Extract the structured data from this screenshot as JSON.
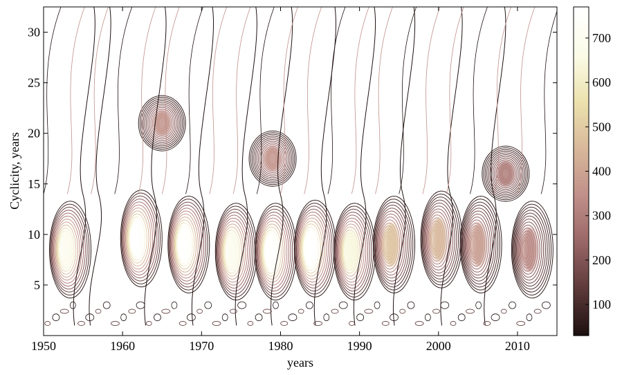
{
  "chart_data": {
    "type": "heatmap",
    "title": "",
    "xlabel": "years",
    "ylabel": "Cyclicity, years",
    "xlim": [
      1950,
      2015
    ],
    "ylim": [
      0,
      32.5
    ],
    "x_ticks": [
      1950,
      1960,
      1970,
      1980,
      1990,
      2000,
      2010
    ],
    "y_ticks": [
      5,
      10,
      15,
      20,
      25,
      30
    ],
    "colorbar": {
      "range": [
        30,
        770
      ],
      "ticks": [
        100,
        200,
        300,
        400,
        500,
        600,
        700
      ],
      "colors": [
        "#1e1010",
        "#5e3a3a",
        "#9a6767",
        "#c0908a",
        "#d8b89a",
        "#ece2ae",
        "#fbfbe8",
        "#ffffff"
      ]
    },
    "grid": false,
    "legend": "none",
    "description_of_peaks": [
      {
        "x": 1952.5,
        "y": 8.5,
        "value": 700
      },
      {
        "x": 1961.5,
        "y": 9.6,
        "value": 770
      },
      {
        "x": 1967.5,
        "y": 9.0,
        "value": 760
      },
      {
        "x": 1973.5,
        "y": 8.3,
        "value": 700
      },
      {
        "x": 1978.5,
        "y": 8.3,
        "value": 760
      },
      {
        "x": 1983.5,
        "y": 8.6,
        "value": 770
      },
      {
        "x": 1988.5,
        "y": 8.3,
        "value": 650
      },
      {
        "x": 1993.5,
        "y": 9.0,
        "value": 480
      },
      {
        "x": 1999.5,
        "y": 9.5,
        "value": 450
      },
      {
        "x": 2004.5,
        "y": 9.0,
        "value": 380
      },
      {
        "x": 2011.0,
        "y": 8.5,
        "value": 330
      },
      {
        "x": 1965.0,
        "y": 21.0,
        "value": 360
      },
      {
        "x": 1979.0,
        "y": 17.5,
        "value": 360
      },
      {
        "x": 2008.5,
        "y": 16.0,
        "value": 300
      }
    ]
  }
}
